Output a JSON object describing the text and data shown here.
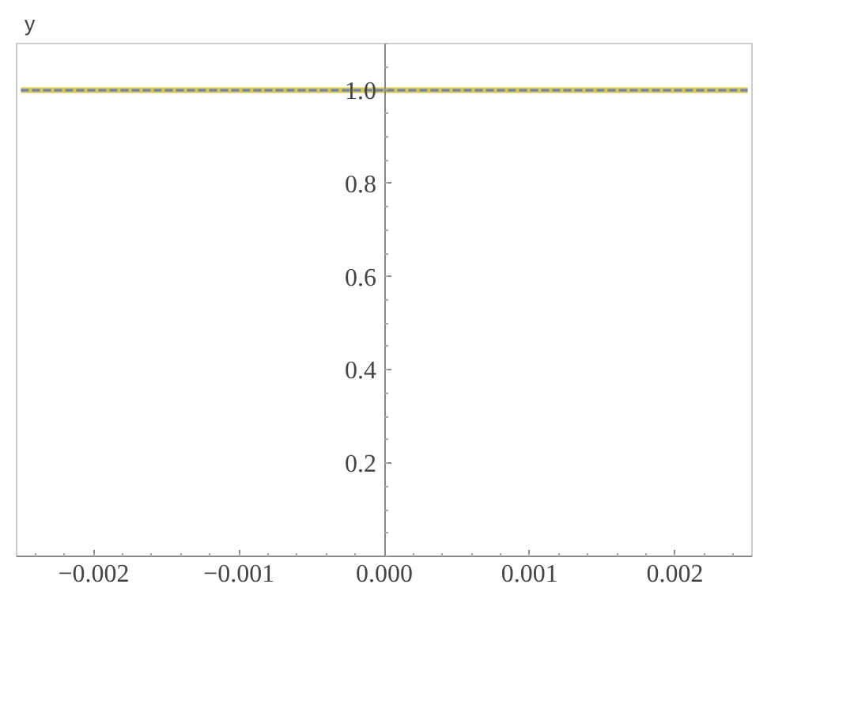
{
  "chart_data": {
    "type": "line",
    "x": [
      -0.0025,
      0.0025
    ],
    "series": [
      {
        "color": "#d8c84a",
        "values": [
          1,
          1
        ],
        "line_style": "solid"
      },
      {
        "color": "#6a7fc0",
        "values": [
          1,
          1
        ],
        "line_style": "dashed"
      }
    ],
    "xlim": [
      -0.00253,
      0.00253
    ],
    "ylim": [
      0,
      1.1
    ],
    "xticks": [
      {
        "value": -0.002,
        "label": "−0.002"
      },
      {
        "value": -0.001,
        "label": "−0.001"
      },
      {
        "value": 0,
        "label": "0.000"
      },
      {
        "value": 0.001,
        "label": "0.001"
      },
      {
        "value": 0.002,
        "label": "0.002"
      }
    ],
    "yticks": [
      {
        "value": 0.2,
        "label": "0.2"
      },
      {
        "value": 0.4,
        "label": "0.4"
      },
      {
        "value": 0.6,
        "label": "0.6"
      },
      {
        "value": 0.8,
        "label": "0.8"
      },
      {
        "value": 1.0,
        "label": "1.0"
      }
    ],
    "annotations": [
      "y"
    ],
    "grid": false,
    "marker": "none"
  }
}
